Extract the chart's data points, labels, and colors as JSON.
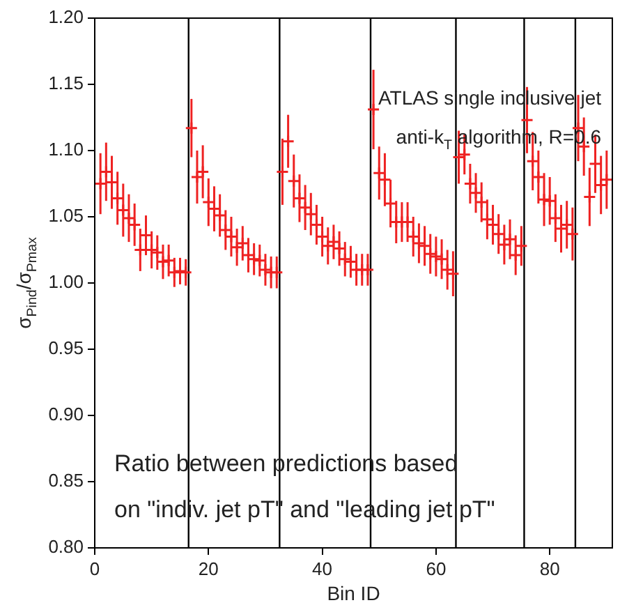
{
  "chart_data": {
    "type": "scatter",
    "xlabel": "Bin ID",
    "ylabel": "σ$_{Pind}$/σ$_{Pmax}$",
    "annotations": [
      "ATLAS single inclusive jet",
      "anti-k$_{T}$ algorithm, R=0.6",
      "Ratio between predictions based",
      "on \"indiv. jet pT\" and \"leading jet pT\""
    ],
    "x": [
      1,
      2,
      3,
      4,
      5,
      6,
      7,
      8,
      9,
      10,
      11,
      12,
      13,
      14,
      15,
      16,
      17,
      18,
      19,
      20,
      21,
      22,
      23,
      24,
      25,
      26,
      27,
      28,
      29,
      30,
      31,
      32,
      33,
      34,
      35,
      36,
      37,
      38,
      39,
      40,
      41,
      42,
      43,
      44,
      45,
      46,
      47,
      48,
      49,
      50,
      51,
      52,
      53,
      54,
      55,
      56,
      57,
      58,
      59,
      60,
      61,
      62,
      63,
      64,
      65,
      66,
      67,
      68,
      69,
      70,
      71,
      72,
      73,
      74,
      75,
      76,
      77,
      78,
      79,
      80,
      81,
      82,
      83,
      84,
      85,
      86,
      87,
      88,
      89,
      90
    ],
    "series": [
      {
        "color": "#ee2222",
        "values": [
          1.075,
          1.084,
          1.076,
          1.064,
          1.055,
          1.049,
          1.044,
          1.025,
          1.036,
          1.025,
          1.023,
          1.016,
          1.017,
          1.008,
          1.009,
          1.008,
          1.117,
          1.08,
          1.084,
          1.061,
          1.056,
          1.051,
          1.04,
          1.035,
          1.027,
          1.03,
          1.021,
          1.018,
          1.017,
          1.01,
          1.008,
          1.008,
          1.084,
          1.107,
          1.077,
          1.064,
          1.057,
          1.052,
          1.044,
          1.035,
          1.028,
          1.031,
          1.026,
          1.018,
          1.016,
          1.01,
          1.01,
          1.01,
          1.131,
          1.083,
          1.078,
          1.06,
          1.046,
          1.046,
          1.046,
          1.035,
          1.03,
          1.028,
          1.022,
          1.02,
          1.018,
          1.01,
          1.007,
          1.095,
          1.097,
          1.075,
          1.068,
          1.061,
          1.048,
          1.044,
          1.037,
          1.029,
          1.033,
          1.021,
          1.028,
          1.123,
          1.092,
          1.08,
          1.063,
          1.062,
          1.049,
          1.041,
          1.044,
          1.037,
          1.117,
          1.103,
          1.065,
          1.09,
          1.074,
          1.078
        ],
        "errors": [
          0.023,
          0.022,
          0.02,
          0.02,
          0.02,
          0.018,
          0.016,
          0.016,
          0.015,
          0.014,
          0.013,
          0.013,
          0.012,
          0.011,
          0.01,
          0.01,
          0.022,
          0.02,
          0.02,
          0.018,
          0.017,
          0.016,
          0.015,
          0.015,
          0.014,
          0.013,
          0.013,
          0.012,
          0.012,
          0.012,
          0.012,
          0.012,
          0.025,
          0.02,
          0.02,
          0.018,
          0.017,
          0.016,
          0.015,
          0.015,
          0.014,
          0.013,
          0.013,
          0.013,
          0.012,
          0.012,
          0.012,
          0.012,
          0.03,
          0.02,
          0.02,
          0.018,
          0.016,
          0.015,
          0.015,
          0.015,
          0.015,
          0.015,
          0.015,
          0.015,
          0.015,
          0.015,
          0.017,
          0.02,
          0.015,
          0.015,
          0.015,
          0.015,
          0.015,
          0.015,
          0.015,
          0.015,
          0.015,
          0.015,
          0.015,
          0.025,
          0.022,
          0.02,
          0.02,
          0.018,
          0.018,
          0.018,
          0.018,
          0.02,
          0.025,
          0.022,
          0.022,
          0.022,
          0.022,
          0.022
        ]
      }
    ],
    "marker": "cross",
    "ref_lines": [
      {
        "axis": "x",
        "value": 16.5,
        "color": "#000000"
      },
      {
        "axis": "x",
        "value": 32.5,
        "color": "#000000"
      },
      {
        "axis": "x",
        "value": 48.5,
        "color": "#000000"
      },
      {
        "axis": "x",
        "value": 63.5,
        "color": "#000000"
      },
      {
        "axis": "x",
        "value": 75.5,
        "color": "#000000"
      },
      {
        "axis": "x",
        "value": 84.5,
        "color": "#000000"
      }
    ],
    "xlim": [
      0,
      91
    ],
    "xticks": [
      0,
      20,
      40,
      60,
      80
    ],
    "ylim": [
      0.8,
      1.2
    ],
    "yticks": [
      {
        "value": 0.8,
        "label": "0.80"
      },
      {
        "value": 0.85,
        "label": "0.85"
      },
      {
        "value": 0.9,
        "label": "0.90"
      },
      {
        "value": 0.95,
        "label": "0.95"
      },
      {
        "value": 1.0,
        "label": "1.00"
      },
      {
        "value": 1.05,
        "label": "1.05"
      },
      {
        "value": 1.1,
        "label": "1.10"
      },
      {
        "value": 1.15,
        "label": "1.15"
      },
      {
        "value": 1.2,
        "label": "1.20"
      }
    ],
    "grid": false,
    "legend": false
  }
}
